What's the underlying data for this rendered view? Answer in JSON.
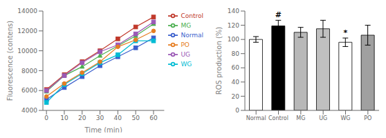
{
  "chart_data": [
    {
      "type": "line",
      "x": [
        0,
        10,
        20,
        30,
        40,
        50,
        60
      ],
      "series": [
        {
          "name": "Normal",
          "color": "#3a5fcd",
          "marker": "square",
          "values": [
            5100,
            6300,
            7400,
            8500,
            9400,
            10300,
            11300
          ]
        },
        {
          "name": "Control",
          "color": "#c0392b",
          "marker": "square",
          "values": [
            6100,
            7600,
            8900,
            10000,
            11200,
            12400,
            13400
          ]
        },
        {
          "name": "MG",
          "color": "#4caf50",
          "marker": "triangle",
          "values": [
            5900,
            7500,
            8400,
            9500,
            10500,
            11500,
            12700
          ]
        },
        {
          "name": "UG",
          "color": "#9b59b6",
          "marker": "square",
          "values": [
            6000,
            7500,
            8800,
            9900,
            10600,
            11700,
            12900
          ]
        },
        {
          "name": "WG",
          "color": "#00bcd4",
          "marker": "square",
          "values": [
            4800,
            6600,
            7700,
            8800,
            9600,
            11000,
            11000
          ]
        },
        {
          "name": "PO",
          "color": "#e67e22",
          "marker": "circle",
          "values": [
            5400,
            6700,
            7800,
            8900,
            10400,
            11100,
            12000
          ]
        }
      ],
      "xlabel": "Time (min)",
      "ylabel": "Fluorescence (contens)",
      "xlim": [
        -2,
        66
      ],
      "xticks": [
        0,
        10,
        20,
        30,
        40,
        50,
        60
      ],
      "ylim": [
        4000,
        14000
      ],
      "yticks": [
        4000,
        6000,
        8000,
        10000,
        12000,
        14000
      ],
      "legend": "upper right",
      "grid": false
    },
    {
      "type": "bar",
      "categories": [
        "Normal",
        "Control",
        "MG",
        "UG",
        "WG",
        "PO"
      ],
      "values": [
        100,
        119,
        110,
        115,
        96,
        106
      ],
      "errors": [
        4,
        8,
        7,
        12,
        6,
        14
      ],
      "colors": [
        "white",
        "black",
        "#b8b8b8",
        "#c0c0c0",
        "white",
        "#a0a0a0"
      ],
      "ylabel": "ROS production (%)",
      "ylim": [
        0,
        140
      ],
      "yticks": [
        0,
        20,
        40,
        60,
        80,
        100,
        120,
        140
      ],
      "annotations": [
        {
          "category": "Control",
          "text": "#"
        },
        {
          "category": "WG",
          "text": "*"
        }
      ],
      "grid": false
    }
  ]
}
